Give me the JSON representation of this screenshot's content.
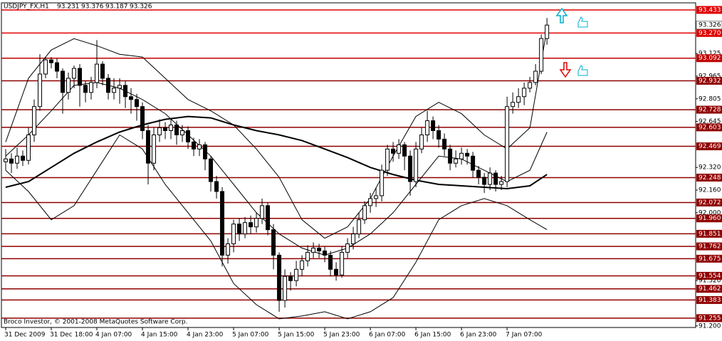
{
  "chart_data": {
    "type": "candlestick",
    "symbol": "USDJPY_FX,H1",
    "header_ohlc": [
      93.231,
      93.376,
      93.187,
      93.326
    ],
    "footer": "Broco Investor, © 2001-2008 MetaQuotes Software Corp.",
    "categories": [
      "31 Dec 2009",
      null,
      null,
      null,
      null,
      null,
      null,
      null,
      "31 Dec 18:00",
      null,
      null,
      null,
      null,
      null,
      null,
      null,
      "4 Jan 07:00",
      null,
      null,
      null,
      null,
      null,
      null,
      null,
      "4 Jan 15:00",
      null,
      null,
      null,
      null,
      null,
      null,
      null,
      "4 Jan 23:00",
      null,
      null,
      null,
      null,
      null,
      null,
      null,
      "5 Jan 07:00",
      null,
      null,
      null,
      null,
      null,
      null,
      null,
      "5 Jan 15:00",
      null,
      null,
      null,
      null,
      null,
      null,
      null,
      "5 Jan 23:00",
      null,
      null,
      null,
      null,
      null,
      null,
      null,
      "6 Jan 07:00",
      null,
      null,
      null,
      null,
      null,
      null,
      null,
      "6 Jan 15:00",
      null,
      null,
      null,
      null,
      null,
      null,
      null,
      "6 Jan 23:00",
      null,
      null,
      null,
      null,
      null,
      null,
      null,
      "7 Jan 07:00",
      null,
      null,
      null,
      null,
      null,
      null,
      null
    ],
    "open": [
      92.36,
      92.38,
      92.35,
      92.4,
      92.37,
      92.55,
      92.75,
      92.98,
      93.08,
      93.06,
      93.0,
      92.85,
      92.95,
      93.02,
      92.9,
      92.85,
      92.92,
      93.05,
      92.95,
      92.85,
      92.88,
      92.9,
      92.82,
      92.8,
      92.75,
      92.58,
      92.35,
      92.55,
      92.6,
      92.58,
      92.62,
      92.55,
      92.58,
      92.5,
      92.45,
      92.48,
      92.38,
      92.22,
      92.15,
      91.7,
      91.78,
      91.92,
      91.85,
      91.93,
      91.9,
      91.96,
      92.05,
      91.88,
      91.7,
      91.38,
      91.55,
      91.52,
      91.6,
      91.66,
      91.72,
      91.75,
      91.73,
      91.7,
      91.6,
      91.56,
      91.72,
      91.78,
      91.85,
      91.95,
      92.05,
      92.1,
      92.12,
      92.3,
      92.45,
      92.42,
      92.48,
      92.4,
      92.22,
      92.45,
      92.55,
      92.65,
      92.58,
      92.52,
      92.45,
      92.35,
      92.38,
      92.42,
      92.4,
      92.3,
      92.25,
      92.2,
      92.28,
      92.2,
      92.22,
      92.75,
      92.78,
      92.82,
      92.88,
      92.92,
      93.0,
      93.231
    ],
    "high": [
      92.45,
      92.42,
      92.46,
      92.44,
      92.6,
      92.8,
      93.12,
      93.1,
      93.1,
      93.09,
      93.02,
      92.99,
      93.04,
      93.05,
      92.93,
      92.96,
      93.22,
      93.07,
      92.98,
      92.95,
      92.95,
      92.93,
      92.88,
      92.84,
      92.78,
      92.62,
      92.6,
      92.66,
      92.64,
      92.66,
      92.65,
      92.62,
      92.61,
      92.53,
      92.52,
      92.5,
      92.4,
      92.26,
      92.18,
      91.82,
      91.95,
      91.96,
      91.97,
      91.98,
      92.0,
      92.1,
      92.07,
      91.92,
      91.72,
      91.6,
      91.58,
      91.66,
      91.7,
      91.77,
      91.79,
      91.78,
      91.76,
      91.73,
      91.65,
      91.76,
      91.82,
      91.9,
      92.0,
      92.08,
      92.14,
      92.18,
      92.34,
      92.48,
      92.5,
      92.52,
      92.5,
      92.44,
      92.5,
      92.6,
      92.72,
      92.68,
      92.62,
      92.56,
      92.48,
      92.44,
      92.46,
      92.45,
      92.43,
      92.33,
      92.28,
      92.32,
      92.3,
      92.26,
      92.82,
      92.85,
      92.88,
      92.92,
      92.96,
      93.05,
      93.26,
      93.376
    ],
    "low": [
      92.3,
      92.28,
      92.31,
      92.33,
      92.34,
      92.5,
      92.72,
      92.95,
      93.02,
      92.95,
      92.7,
      92.8,
      92.88,
      92.75,
      92.78,
      92.8,
      92.88,
      92.9,
      92.8,
      92.8,
      92.77,
      92.74,
      92.7,
      92.65,
      92.52,
      92.2,
      92.3,
      92.5,
      92.52,
      92.52,
      92.48,
      92.5,
      92.45,
      92.4,
      92.4,
      92.3,
      92.15,
      92.1,
      91.62,
      91.64,
      91.72,
      91.8,
      91.82,
      91.85,
      91.86,
      91.92,
      91.84,
      91.6,
      91.3,
      91.33,
      91.45,
      91.48,
      91.55,
      91.62,
      91.68,
      91.68,
      91.65,
      91.55,
      91.52,
      91.54,
      91.68,
      91.74,
      91.82,
      91.92,
      92.0,
      92.04,
      92.08,
      92.26,
      92.36,
      92.38,
      92.3,
      92.12,
      92.18,
      92.42,
      92.5,
      92.52,
      92.46,
      92.4,
      92.3,
      92.32,
      92.34,
      92.34,
      92.25,
      92.2,
      92.14,
      92.16,
      92.15,
      92.16,
      92.18,
      92.7,
      92.74,
      92.76,
      92.85,
      92.9,
      92.98,
      93.187
    ],
    "close": [
      92.38,
      92.35,
      92.4,
      92.37,
      92.55,
      92.75,
      92.98,
      93.08,
      93.06,
      93.0,
      92.85,
      92.95,
      93.02,
      92.9,
      92.85,
      92.92,
      93.05,
      92.95,
      92.85,
      92.88,
      92.9,
      92.82,
      92.8,
      92.75,
      92.58,
      92.35,
      92.55,
      92.6,
      92.58,
      92.62,
      92.55,
      92.58,
      92.5,
      92.45,
      92.48,
      92.38,
      92.22,
      92.15,
      91.7,
      91.78,
      91.92,
      91.85,
      91.93,
      91.9,
      91.96,
      92.05,
      91.88,
      91.7,
      91.38,
      91.55,
      91.52,
      91.6,
      91.66,
      91.72,
      91.75,
      91.73,
      91.7,
      91.6,
      91.56,
      91.72,
      91.78,
      91.85,
      91.95,
      92.05,
      92.1,
      92.12,
      92.3,
      92.45,
      92.42,
      92.48,
      92.4,
      92.22,
      92.45,
      92.55,
      92.65,
      92.58,
      92.52,
      92.45,
      92.35,
      92.38,
      92.42,
      92.4,
      92.3,
      92.25,
      92.2,
      92.28,
      92.2,
      92.22,
      92.75,
      92.78,
      92.82,
      92.88,
      92.92,
      93.0,
      93.231,
      93.326
    ],
    "up_color": "#ffffff",
    "down_color": "#000000",
    "lines": [
      {
        "color": "#000000",
        "width": 2,
        "x": [
          0,
          4,
          8,
          12,
          16,
          20,
          24,
          28,
          32,
          36,
          40,
          44,
          48,
          52,
          56,
          60,
          64,
          68,
          72,
          76,
          80,
          84,
          88,
          92,
          95
        ],
        "values": [
          92.18,
          92.22,
          92.32,
          92.42,
          92.5,
          92.57,
          92.62,
          92.66,
          92.68,
          92.67,
          92.62,
          92.58,
          92.55,
          92.51,
          92.45,
          92.39,
          92.32,
          92.27,
          92.23,
          92.2,
          92.19,
          92.18,
          92.17,
          92.19,
          92.27
        ]
      },
      {
        "color": "#000000",
        "width": 1,
        "x": [
          0,
          4,
          8,
          12,
          16,
          20,
          24,
          28,
          32,
          36,
          40,
          44,
          48,
          52,
          56,
          60,
          64,
          68,
          72,
          76,
          80,
          84,
          88,
          92,
          95
        ],
        "values": [
          92.4,
          92.55,
          92.72,
          92.9,
          92.92,
          92.88,
          92.8,
          92.7,
          92.55,
          92.4,
          92.2,
          92.0,
          91.85,
          91.75,
          91.7,
          91.75,
          91.85,
          92.0,
          92.2,
          92.4,
          92.38,
          92.3,
          92.22,
          92.3,
          92.57
        ]
      },
      {
        "color": "#000000",
        "width": 1,
        "x": [
          0,
          4,
          8,
          12,
          16,
          20,
          24,
          28,
          32,
          36,
          40,
          44,
          48,
          52,
          56,
          60,
          64,
          68,
          72,
          76,
          80,
          84,
          88,
          92,
          95
        ],
        "values": [
          92.5,
          92.95,
          93.15,
          93.23,
          93.18,
          93.12,
          93.1,
          92.95,
          92.8,
          92.72,
          92.62,
          92.45,
          92.25,
          91.95,
          91.82,
          91.9,
          92.1,
          92.4,
          92.68,
          92.78,
          92.7,
          92.55,
          92.45,
          92.6,
          93.3
        ]
      },
      {
        "color": "#000000",
        "width": 1,
        "x": [
          0,
          4,
          8,
          12,
          16,
          20,
          24,
          28,
          32,
          36,
          40,
          44,
          48,
          52,
          56,
          60,
          64,
          68,
          72,
          76,
          80,
          84,
          88,
          92,
          95
        ],
        "values": [
          92.3,
          92.15,
          91.95,
          92.05,
          92.3,
          92.55,
          92.45,
          92.2,
          92.0,
          91.8,
          91.5,
          91.35,
          91.25,
          91.27,
          91.3,
          91.25,
          91.3,
          91.4,
          91.65,
          91.95,
          92.05,
          92.1,
          92.05,
          91.95,
          91.88
        ]
      }
    ],
    "levels": [
      {
        "value": 93.433,
        "color": "#e00000"
      },
      {
        "value": 93.27,
        "label": "93.270",
        "color": "#e00000"
      },
      {
        "value": 93.092,
        "color": "#c00000"
      },
      {
        "value": 92.932,
        "color": "#900000"
      },
      {
        "value": 92.728,
        "color": "#900000"
      },
      {
        "value": 92.603,
        "color": "#900000"
      },
      {
        "value": 92.469,
        "color": "#900000"
      },
      {
        "value": 92.248,
        "color": "#900000"
      },
      {
        "value": 92.072,
        "color": "#900000"
      },
      {
        "value": 91.96,
        "label": "91.960",
        "color": "#900000"
      },
      {
        "value": 91.851,
        "color": "#900000"
      },
      {
        "value": 91.762,
        "color": "#900000"
      },
      {
        "value": 91.675,
        "color": "#900000"
      },
      {
        "value": 91.554,
        "color": "#900000"
      },
      {
        "value": 91.462,
        "color": "#900000"
      },
      {
        "value": 91.383,
        "color": "#900000"
      },
      {
        "value": 91.255,
        "color": "#900000"
      }
    ],
    "last_price": 93.326,
    "xlim": [
      -0.75,
      121.1
    ],
    "ylim": [
      91.189,
      93.483
    ],
    "yticks": [
      93.125,
      92.965,
      92.805,
      92.645,
      {
        "value": 92.32,
        "label": "92.320"
      },
      {
        "value": 92.16,
        "label": "92.160"
      },
      {
        "value": 92,
        "label": "92.000"
      },
      {
        "value": 91.52,
        "label": "91.520"
      },
      {
        "value": 91.2,
        "label": "91.200"
      }
    ]
  }
}
